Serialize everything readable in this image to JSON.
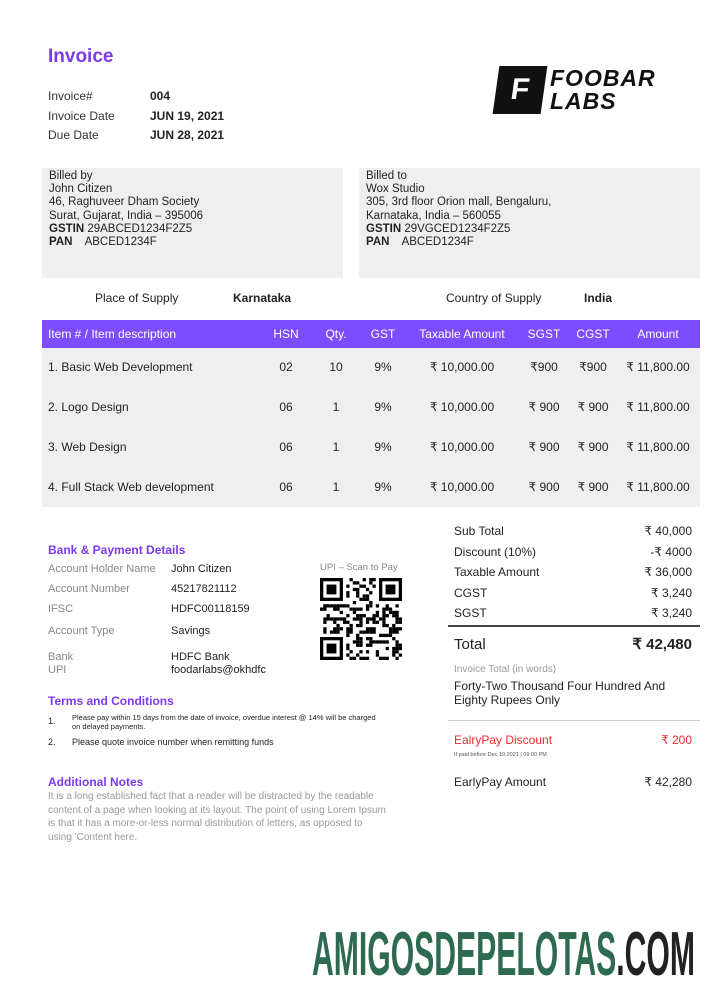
{
  "title": "Invoice",
  "meta": [
    {
      "k": "Invoice#",
      "v": "004"
    },
    {
      "k": "Invoice Date",
      "v": "JUN 19, 2021"
    },
    {
      "k": "Due Date",
      "v": "JUN 28, 2021"
    }
  ],
  "logo": {
    "mark": "F",
    "line1": "FOOBAR",
    "line2": "LABS"
  },
  "billed_by": {
    "label": "Billed by",
    "name": "John Citizen",
    "addr1": "46, Raghuveer Dham Society",
    "addr2": "Surat, Gujarat, India – 395006",
    "gstin_label": "GSTIN",
    "gstin": "29ABCED1234F2Z5",
    "pan_label": "PAN",
    "pan": "ABCED1234F"
  },
  "billed_to": {
    "label": "Billed to",
    "name": "Wox Studio",
    "addr1": "305, 3rd floor Orion mall, Bengaluru,",
    "addr2": "Karnataka, India – 560055",
    "gstin_label": "GSTIN",
    "gstin": "29VGCED1234F2Z5",
    "pan_label": "PAN",
    "pan": "ABCED1234F"
  },
  "supply": {
    "place_label": "Place of Supply",
    "place": "Karnataka",
    "country_label": "Country of Supply",
    "country": "India"
  },
  "table": {
    "headers": [
      "Item # / Item description",
      "HSN",
      "Qty.",
      "GST",
      "Taxable Amount",
      "SGST",
      "CGST",
      "Amount"
    ],
    "rows": [
      [
        "1. Basic Web Development",
        "02",
        "10",
        "9%",
        "₹ 10,000.00",
        "₹900",
        "₹900",
        "₹ 11,800.00"
      ],
      [
        "2. Logo Design",
        "06",
        "1",
        "9%",
        "₹ 10,000.00",
        "₹ 900",
        "₹ 900",
        "₹ 11,800.00"
      ],
      [
        "3. Web Design",
        "06",
        "1",
        "9%",
        "₹ 10,000.00",
        "₹ 900",
        "₹ 900",
        "₹ 11,800.00"
      ],
      [
        "4. Full Stack Web development",
        "06",
        "1",
        "9%",
        "₹ 10,000.00",
        "₹ 900",
        "₹ 900",
        "₹ 11,800.00"
      ]
    ]
  },
  "bank": {
    "title": "Bank & Payment Details",
    "rows": [
      {
        "k": "Account Holder Name",
        "v": "John Citizen"
      },
      {
        "k": "Account Number",
        "v": "45217821112"
      },
      {
        "k": "IFSC",
        "v": "HDFC00118159"
      },
      {
        "k": "Account Type",
        "v": "Savings"
      },
      {
        "k": "Bank",
        "v": "HDFC Bank"
      },
      {
        "k": "UPI",
        "v": "foodarlabs@okhdfc"
      }
    ],
    "qr_label": "UPI – Scan to Pay"
  },
  "terms": {
    "title": "Terms and Conditions",
    "items": [
      {
        "n": "1.",
        "t": "Please pay within 15 days from the date of invoice, overdue interest @ 14% will be charged on delayed payments."
      },
      {
        "n": "2.",
        "t": "Please quote invoice number when remitting funds"
      }
    ]
  },
  "notes": {
    "title": "Additional Notes",
    "text": "It is a long established fact that a reader will be distracted by the readable content of a page when looking at its layout. The point of using Lorem Ipsum is that it has a more-or-less normal distribution of letters, as opposed to using 'Content here."
  },
  "totals": {
    "rows": [
      {
        "k": "Sub Total",
        "v": "₹ 40,000"
      },
      {
        "k": "Discount (10%)",
        "v": "-₹ 4000"
      },
      {
        "k": "Taxable Amount",
        "v": "₹ 36,000"
      },
      {
        "k": "CGST",
        "v": "₹ 3,240"
      },
      {
        "k": "SGST",
        "v": "₹ 3,240"
      }
    ],
    "total_label": "Total",
    "total": "₹ 42,480",
    "words_label": "Invoice Total (in words)",
    "words": "Forty-Two Thousand Four Hundred And Eighty Rupees Only",
    "early_label": "EalryPay Discount",
    "early": "₹ 200",
    "early_note": "If paid before Dec 19,2021 | 09:00 PM",
    "early_amount_label": "EarlyPay Amount",
    "early_amount": "₹ 42,280"
  },
  "watermark": {
    "main": "AMIGOSDEPELOTAS",
    "suffix": ".COM"
  },
  "colors": {
    "accent": "#7c3aed",
    "header": "#7c4dff",
    "red": "#ef2b2b",
    "watermark": "#2d6a4f"
  }
}
